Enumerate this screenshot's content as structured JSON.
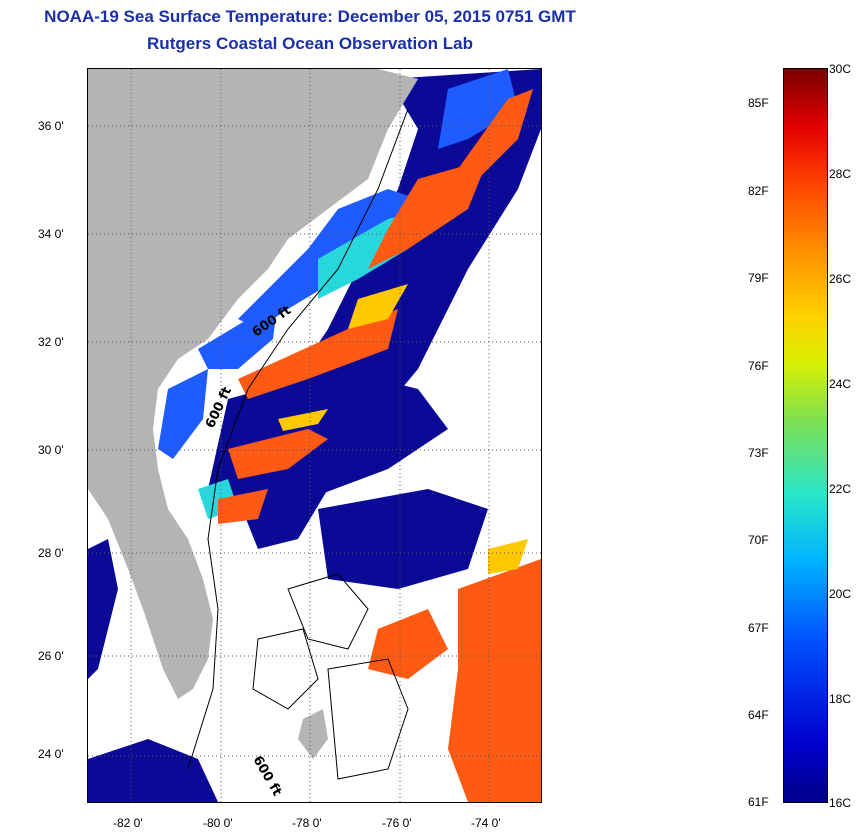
{
  "header": {
    "title": "NOAA-19 Sea Surface Temperature:  December 05, 2015 0751 GMT",
    "subtitle": "Rutgers Coastal Ocean Observation Lab"
  },
  "map": {
    "lat_labels": [
      "36 0'",
      "34 0'",
      "32 0'",
      "30 0'",
      "28 0'",
      "26 0'",
      "24 0'"
    ],
    "lon_labels": [
      "-82 0'",
      "-80 0'",
      "-78 0'",
      "-76 0'",
      "-74 0'"
    ],
    "contour_labels": [
      "600 ft",
      "600 ft",
      "600 ft"
    ],
    "land_color": "#b4b4b4",
    "cloud_color": "#ffffff"
  },
  "colorbar": {
    "fahrenheit_labels": [
      "85F",
      "82F",
      "79F",
      "76F",
      "73F",
      "70F",
      "67F",
      "64F",
      "61F"
    ],
    "celsius_labels": [
      "30C",
      "28C",
      "26C",
      "24C",
      "22C",
      "20C",
      "18C",
      "16C"
    ],
    "min_color": "#00008b",
    "max_color": "#7a0000"
  }
}
